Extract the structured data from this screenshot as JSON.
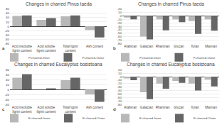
{
  "chart_data": [
    {
      "type": "bar",
      "title": "Changes in charred Pinus taeda",
      "categories": [
        "Acid insoluble\nlignin content",
        "Acid soluble\nlignin content",
        "Total lignin\ncontent",
        "Ash content"
      ],
      "series": [
        {
          "name": "P.charred-Inner",
          "color": "#b8b8b8",
          "values": [
            48,
            30,
            46,
            -17
          ]
        },
        {
          "name": "P.charred-Outer",
          "color": "#666666",
          "values": [
            50,
            38,
            50,
            -52
          ]
        }
      ],
      "ylim": [
        -80,
        80
      ],
      "yticks": [
        -80,
        -60,
        -40,
        -20,
        0,
        20,
        40,
        60,
        80
      ],
      "grid": true,
      "legend": "bottom",
      "annotations": [
        "a"
      ]
    },
    {
      "type": "bar",
      "title": "Changes in charred Pinus taeda",
      "categories": [
        "Arabinan",
        "Galactan",
        "Rhamnan",
        "Glucan",
        "Xylan",
        "Mannan"
      ],
      "series": [
        {
          "name": "P.charred-Inner",
          "color": "#b8b8b8",
          "values": [
            -5,
            -60,
            -10,
            -10,
            -15,
            -10
          ]
        },
        {
          "name": "P.charred-Outer",
          "color": "#666666",
          "values": [
            -10,
            -68,
            -42,
            -18,
            -52,
            -43
          ]
        }
      ],
      "ylim": [
        -80,
        20
      ],
      "yticks": [
        -80,
        -70,
        -60,
        -50,
        -40,
        -30,
        -20,
        -10,
        0,
        10,
        20
      ],
      "grid": true,
      "legend": "bottom",
      "annotations": [
        "b"
      ]
    },
    {
      "type": "bar",
      "title": "Changes in charred Eucalyptus bosistoana",
      "categories": [
        "Acid insoluble\nlignin content",
        "Acid soluble\nlignin content",
        "Total lignin\ncontent",
        "Ash content"
      ],
      "series": [
        {
          "name": "E.charred-Inner",
          "color": "#b8b8b8",
          "values": [
            48,
            2,
            38,
            -20
          ]
        },
        {
          "name": "E.charred-Outer",
          "color": "#666666",
          "values": [
            62,
            5,
            48,
            -50
          ]
        }
      ],
      "ylim": [
        -60,
        80
      ],
      "yticks": [
        -60,
        -40,
        -20,
        0,
        20,
        40,
        60,
        80
      ],
      "grid": true,
      "legend": "bottom",
      "annotations": [
        "c"
      ]
    },
    {
      "type": "bar",
      "title": "Changes in charred Eucalyptus bosistoana",
      "categories": [
        "Arabinan",
        "Galactan",
        "Rhamnan",
        "Glucan",
        "Xylan",
        "Mannan"
      ],
      "series": [
        {
          "name": "E.charred-Inner",
          "color": "#b8b8b8",
          "values": [
            -5,
            -45,
            -20,
            -12,
            -20,
            -8
          ]
        },
        {
          "name": "E.charred-Outer",
          "color": "#666666",
          "values": [
            -10,
            -65,
            -35,
            -18,
            -40,
            -28
          ]
        }
      ],
      "ylim": [
        -80,
        20
      ],
      "yticks": [
        -80,
        -70,
        -60,
        -50,
        -40,
        -30,
        -20,
        -10,
        0,
        10,
        20
      ],
      "grid": true,
      "legend": "bottom",
      "annotations": [
        "d"
      ]
    }
  ]
}
